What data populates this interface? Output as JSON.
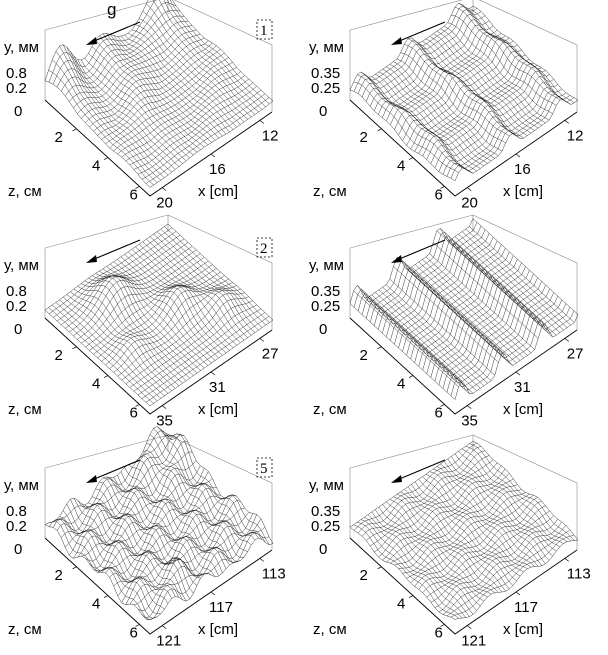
{
  "figure": {
    "gravity_label": "g",
    "panels": [
      {
        "tag": "1",
        "row": 0,
        "col": 0,
        "y_label": "у, мм",
        "y_ticks": [
          "0.8",
          "0.2",
          "0"
        ],
        "z_label": "z, см",
        "z_ticks": [
          "2",
          "4",
          "6"
        ],
        "x_label": "x  [cm]",
        "x_ticks": [
          "12",
          "16",
          "20"
        ],
        "surface": "rough"
      },
      {
        "tag": "",
        "row": 0,
        "col": 1,
        "y_label": "у, мм",
        "y_ticks": [
          "0.35",
          "0.25",
          "0"
        ],
        "z_label": "z, см",
        "z_ticks": [
          "2",
          "4",
          "6"
        ],
        "x_label": "x  [cm]",
        "x_ticks": [
          "12",
          "16",
          "20"
        ],
        "surface": "ridges"
      },
      {
        "tag": "2",
        "row": 1,
        "col": 0,
        "y_label": "у, мм",
        "y_ticks": [
          "0.8",
          "0.2",
          "0"
        ],
        "z_label": "z, см",
        "z_ticks": [
          "2",
          "4",
          "6"
        ],
        "x_label": "x  [cm]",
        "x_ticks": [
          "27",
          "31",
          "35"
        ],
        "surface": "bumps"
      },
      {
        "tag": "",
        "row": 1,
        "col": 1,
        "y_label": "у, мм",
        "y_ticks": [
          "0.35",
          "0.25",
          "0"
        ],
        "z_label": "z, см",
        "z_ticks": [
          "2",
          "4",
          "6"
        ],
        "x_label": "x  [cm]",
        "x_ticks": [
          "27",
          "31",
          "35"
        ],
        "surface": "ridges3"
      },
      {
        "tag": "5",
        "row": 2,
        "col": 0,
        "y_label": "у, мм",
        "y_ticks": [
          "0.8",
          "0.2",
          "0"
        ],
        "z_label": "z, см",
        "z_ticks": [
          "2",
          "4",
          "6"
        ],
        "x_label": "x  [cm]",
        "x_ticks": [
          "113",
          "117",
          "121"
        ],
        "surface": "noisy"
      },
      {
        "tag": "",
        "row": 2,
        "col": 1,
        "y_label": "у, мм",
        "y_ticks": [
          "0.35",
          "0.25",
          "0"
        ],
        "z_label": "z, см",
        "z_ticks": [
          "2",
          "4",
          "6"
        ],
        "x_label": "x  [cm]",
        "x_ticks": [
          "113",
          "117",
          "121"
        ],
        "surface": "faint"
      }
    ]
  }
}
